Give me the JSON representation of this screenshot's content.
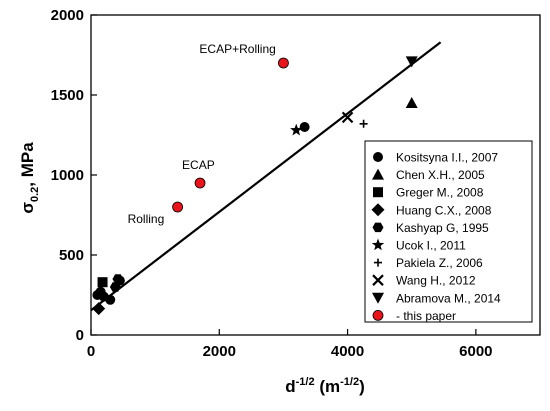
{
  "chart_data": {
    "type": "scatter",
    "title": "",
    "xlabel": {
      "base": "d",
      "sup": "-1/2",
      "units_open": " (m",
      "units_sup": "-1/2",
      "units_close": ")"
    },
    "ylabel": {
      "base": "σ",
      "sub": "0.2",
      "units": ", MPa"
    },
    "xlim": [
      0,
      7000
    ],
    "ylim": [
      0,
      2000
    ],
    "x_ticks": [
      "0",
      "2000",
      "4000",
      "6000"
    ],
    "y_ticks": [
      "0",
      "500",
      "1000",
      "1500",
      "2000"
    ],
    "x_tick_values": [
      0,
      2000,
      4000,
      6000
    ],
    "y_tick_values": [
      0,
      500,
      1000,
      1500,
      2000
    ],
    "grid": false,
    "legend_position": "right",
    "series": [
      {
        "name": "Kositsyna I.I., 2007",
        "marker": "circle",
        "color": "#000000",
        "points": [
          [
            100,
            250
          ],
          [
            150,
            270
          ],
          [
            200,
            240
          ],
          [
            300,
            220
          ],
          [
            450,
            340
          ],
          [
            3330,
            1300
          ]
        ]
      },
      {
        "name": "Chen X.H., 2005",
        "marker": "triangle-up",
        "color": "#000000",
        "points": [
          [
            5000,
            1450
          ]
        ]
      },
      {
        "name": "Greger M., 2008",
        "marker": "square",
        "color": "#000000",
        "points": [
          [
            180,
            330
          ]
        ]
      },
      {
        "name": "Huang C.X., 2008",
        "marker": "diamond",
        "color": "#000000",
        "points": [
          [
            120,
            165
          ]
        ]
      },
      {
        "name": "Kashyap G, 1995",
        "marker": "hexagon",
        "color": "#000000",
        "points": [
          [
            420,
            350
          ],
          [
            380,
            300
          ]
        ]
      },
      {
        "name": "Ucok I., 2011",
        "marker": "star",
        "color": "#000000",
        "points": [
          [
            3200,
            1280
          ]
        ]
      },
      {
        "name": "Pakiela Z., 2006",
        "marker": "plus",
        "color": "#000000",
        "points": [
          [
            4250,
            1320
          ]
        ]
      },
      {
        "name": "Wang H., 2012",
        "marker": "cross",
        "color": "#000000",
        "points": [
          [
            4000,
            1360
          ]
        ]
      },
      {
        "name": "Abramova M., 2014",
        "marker": "triangle-down",
        "color": "#000000",
        "points": [
          [
            5000,
            1710
          ]
        ]
      },
      {
        "name": "- this paper",
        "marker": "circle",
        "color": "#e8141b",
        "points": [
          [
            1350,
            800
          ],
          [
            1700,
            950
          ],
          [
            3000,
            1700
          ]
        ]
      }
    ],
    "annotations": [
      {
        "text": "ECAP+Rolling",
        "x": 3000,
        "y": 1700
      },
      {
        "text": "ECAP",
        "x": 1700,
        "y": 950
      },
      {
        "text": "Rolling",
        "x": 1350,
        "y": 800
      }
    ],
    "fit_line": {
      "x": [
        0,
        5450
      ],
      "y": [
        155,
        1830
      ]
    }
  }
}
